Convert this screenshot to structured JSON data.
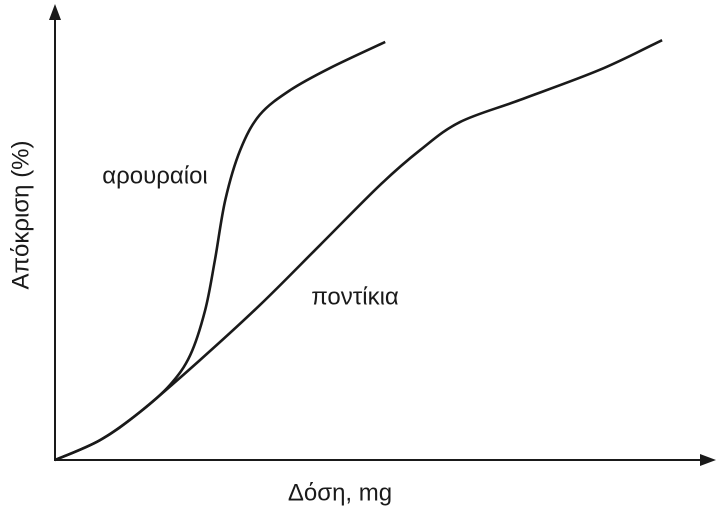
{
  "chart_data": {
    "type": "line",
    "x_label": "Δόση, mg",
    "y_label": "Απόκριση (%)",
    "xlim": [
      0,
      100
    ],
    "ylim": [
      0,
      100
    ],
    "color": "#1a1a1a",
    "series": [
      {
        "name": "αρουραίοι",
        "x": [
          0,
          6.9,
          13.1,
          17.7,
          20.8,
          23.1,
          24.6,
          26.2,
          28.5,
          31.5,
          36.2,
          42.3,
          50.8
        ],
        "values": [
          0,
          4.4,
          10.7,
          16.7,
          23.3,
          33.3,
          44.4,
          57.8,
          68.9,
          76.7,
          82.2,
          87.1,
          92.9
        ]
      },
      {
        "name": "ποντίκια",
        "x": [
          0,
          6.9,
          13.1,
          22.3,
          31.5,
          40.8,
          50,
          56.2,
          62.3,
          71.5,
          83.8,
          93.4
        ],
        "values": [
          0,
          4.4,
          10.7,
          22.2,
          34.4,
          47.8,
          61.1,
          68.9,
          75.1,
          80,
          86.7,
          93.3
        ]
      }
    ]
  }
}
